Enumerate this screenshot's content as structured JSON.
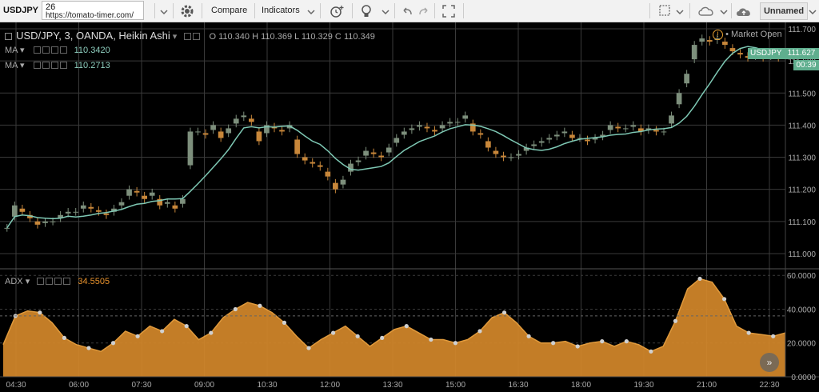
{
  "toolbar": {
    "symbol": "USDJPY",
    "interval": "26",
    "url": "https://tomato-timer.com/",
    "compare_label": "Compare",
    "indicators_label": "Indicators",
    "layout_name": "Unnamed",
    "icons": [
      "gear-icon",
      "alarm-icon",
      "lightbulb-icon",
      "undo-icon",
      "redo-icon",
      "fullscreen-icon",
      "layout-icon",
      "cloud-icon",
      "cloud-upload-icon"
    ]
  },
  "header": {
    "title": "USD/JPY, 3, OANDA, Heikin Ashi",
    "o_label": "O",
    "o_value": "110.340",
    "h_label": "H",
    "h_value": "110.369",
    "l_label": "L",
    "l_value": "110.329",
    "c_label": "C",
    "c_value": "110.349",
    "ma1_label": "MA",
    "ma1_value": "110.3420",
    "ma2_label": "MA",
    "ma2_value": "110.2713",
    "market_status": "Market Open",
    "price_tag_symbol": "USDJPY",
    "price_tag_value": "111.627",
    "countdown": "00:39",
    "adx_label": "ADX",
    "adx_value": "34.5505"
  },
  "colors": {
    "background": "#000000",
    "grid": "#3a3a3a",
    "candle_up": "#7d8f7c",
    "candle_down": "#c8873a",
    "ma": "#7ec8b4",
    "adx_fill": "#d4882a",
    "adx_point": "#d0d0d0",
    "price_tag": "#5fae8e",
    "ma_value_text": "#8fcfbf",
    "adx_value_text": "#e8922c",
    "market_open": "#e8a030"
  },
  "chart_data": [
    {
      "type": "line",
      "title": "USD/JPY, 3, OANDA, Heikin Ashi",
      "x_tick_labels": [
        "04:30",
        "06:00",
        "07:30",
        "09:00",
        "10:30",
        "12:00",
        "13:30",
        "15:00",
        "16:30",
        "18:00",
        "19:30",
        "21:00",
        "22:30"
      ],
      "y_tick_labels": [
        "111.700",
        "111.600",
        "111.500",
        "111.400",
        "111.300",
        "111.200",
        "111.100",
        "111.000"
      ],
      "ylim": [
        110.96,
        111.71
      ],
      "series": [
        {
          "values": [
            111.08,
            111.15,
            111.13,
            111.11,
            111.09,
            111.1,
            111.1,
            111.12,
            111.13,
            111.13,
            111.15,
            111.14,
            111.13,
            111.12,
            111.14,
            111.16,
            111.2,
            111.19,
            111.17,
            111.19,
            111.15,
            111.16,
            111.14,
            111.17,
            111.38,
            111.38,
            111.37,
            111.4,
            111.36,
            111.39,
            111.42,
            111.43,
            111.41,
            111.35,
            111.4,
            111.39,
            111.38,
            111.4,
            111.31,
            111.29,
            111.28,
            111.27,
            111.24,
            111.2,
            111.23,
            111.28,
            111.29,
            111.32,
            111.31,
            111.3,
            111.33,
            111.36,
            111.38,
            111.39,
            111.4,
            111.39,
            111.38,
            111.4,
            111.41,
            111.41,
            111.43,
            111.38,
            111.37,
            111.33,
            111.31,
            111.3,
            111.3,
            111.31,
            111.33,
            111.34,
            111.35,
            111.36,
            111.37,
            111.38,
            111.36,
            111.36,
            111.35,
            111.36,
            111.37,
            111.4,
            111.39,
            111.39,
            111.4,
            111.38,
            111.39,
            111.38,
            111.38,
            111.43,
            111.5,
            111.56,
            111.65,
            111.67,
            111.66,
            111.67,
            111.65,
            111.63,
            111.62,
            111.61,
            111.62,
            111.61,
            111.62,
            111.61
          ]
        }
      ]
    },
    {
      "type": "area",
      "title": "ADX",
      "x_tick_labels": [
        "04:30",
        "06:00",
        "07:30",
        "09:00",
        "10:30",
        "12:00",
        "13:30",
        "15:00",
        "16:30",
        "18:00",
        "19:30",
        "21:00",
        "22:30"
      ],
      "y_tick_labels": [
        "60.0000",
        "40.0000",
        "20.0000",
        "0.0000"
      ],
      "ylim": [
        0,
        62
      ],
      "series": [
        {
          "name": "ADX",
          "values": [
            19,
            36,
            39,
            38,
            32,
            23,
            19,
            17,
            15,
            20,
            27,
            24,
            30,
            27,
            34,
            30,
            22,
            26,
            35,
            40,
            44,
            42,
            38,
            32,
            24,
            17,
            22,
            26,
            30,
            24,
            18,
            23,
            28,
            30,
            26,
            22,
            22,
            20,
            22,
            27,
            35,
            38,
            32,
            24,
            20,
            20,
            21,
            18,
            20,
            21,
            18,
            21,
            19,
            15,
            18,
            33,
            52,
            58,
            56,
            46,
            30,
            26,
            25,
            24,
            26
          ]
        }
      ]
    }
  ]
}
